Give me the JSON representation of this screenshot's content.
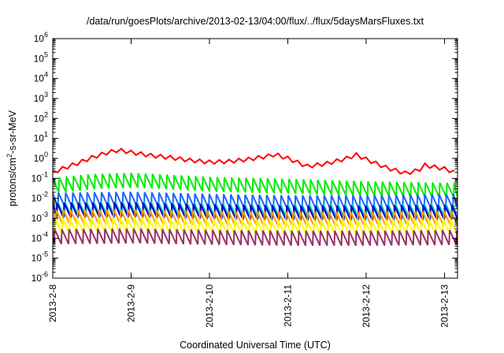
{
  "chart_data": {
    "type": "line",
    "title": "/data/run/goesPlots/archive/2013-02-13/04:00/flux/../flux/5daysMarsFluxes.txt",
    "xlabel": "Coordinated Universal Time (UTC)",
    "ylabel": {
      "prefix": "protons/cm",
      "sup": "2",
      "suffix": "-s-sr-MeV"
    },
    "yscale": "log",
    "ylim": [
      1e-06,
      1000000.0
    ],
    "y_ticks": [
      {
        "base": "10",
        "exp": "-6"
      },
      {
        "base": "10",
        "exp": "-5"
      },
      {
        "base": "10",
        "exp": "-4"
      },
      {
        "base": "10",
        "exp": "-3"
      },
      {
        "base": "10",
        "exp": "-2"
      },
      {
        "base": "10",
        "exp": "-1"
      },
      {
        "base": "10",
        "exp": "0"
      },
      {
        "base": "10",
        "exp": "1"
      },
      {
        "base": "10",
        "exp": "2"
      },
      {
        "base": "10",
        "exp": "3"
      },
      {
        "base": "10",
        "exp": "4"
      },
      {
        "base": "10",
        "exp": "5"
      },
      {
        "base": "10",
        "exp": "6"
      }
    ],
    "xlim": [
      "2013-02-08 00:00",
      "2013-02-13 04:00"
    ],
    "x_ticks": [
      "2013-2-8",
      "2013-2-9",
      "2013-2-10",
      "2013-2-11",
      "2013-2-12",
      "2013-2-13"
    ],
    "grid": false,
    "legend": "none",
    "sawtooth": {
      "period_hours": 2.2
    },
    "series": [
      {
        "color": "#ff0000",
        "stroke": 2,
        "points": [
          [
            "2013-02-08 00:00",
            0.2
          ],
          [
            "2013-02-08 04:00",
            0.35
          ],
          [
            "2013-02-08 08:00",
            0.6
          ],
          [
            "2013-02-08 12:00",
            1.1
          ],
          [
            "2013-02-08 16:00",
            1.8
          ],
          [
            "2013-02-08 20:00",
            2.6
          ],
          [
            "2013-02-09 00:00",
            2.0
          ],
          [
            "2013-02-09 06:00",
            1.4
          ],
          [
            "2013-02-09 12:00",
            1.1
          ],
          [
            "2013-02-09 18:00",
            0.8
          ],
          [
            "2013-02-10 00:00",
            0.65
          ],
          [
            "2013-02-10 06:00",
            0.7
          ],
          [
            "2013-02-10 12:00",
            0.9
          ],
          [
            "2013-02-10 18:00",
            1.3
          ],
          [
            "2013-02-10 20:00",
            1.6
          ],
          [
            "2013-02-11 00:00",
            1.0
          ],
          [
            "2013-02-11 06:00",
            0.4
          ],
          [
            "2013-02-11 12:00",
            0.55
          ],
          [
            "2013-02-11 18:00",
            1.0
          ],
          [
            "2013-02-11 21:00",
            1.5
          ],
          [
            "2013-02-12 00:00",
            0.9
          ],
          [
            "2013-02-12 06:00",
            0.35
          ],
          [
            "2013-02-12 12:00",
            0.18
          ],
          [
            "2013-02-12 16:00",
            0.25
          ],
          [
            "2013-02-12 18:00",
            0.45
          ],
          [
            "2013-02-13 00:00",
            0.3
          ],
          [
            "2013-02-13 04:00",
            0.18
          ]
        ]
      },
      {
        "color": "#00ee00",
        "stroke": 2,
        "points": [
          [
            "2013-02-08 00:00",
            0.045
          ],
          [
            "2013-02-08 12:00",
            0.07
          ],
          [
            "2013-02-09 00:00",
            0.08
          ],
          [
            "2013-02-10 00:00",
            0.05
          ],
          [
            "2013-02-11 00:00",
            0.04
          ],
          [
            "2013-02-12 00:00",
            0.03
          ],
          [
            "2013-02-13 04:00",
            0.025
          ]
        ]
      },
      {
        "color": "#1a66ff",
        "stroke": 2,
        "points": [
          [
            "2013-02-08 00:00",
            0.008
          ],
          [
            "2013-02-09 00:00",
            0.009
          ],
          [
            "2013-02-10 00:00",
            0.007
          ],
          [
            "2013-02-11 00:00",
            0.006
          ],
          [
            "2013-02-12 00:00",
            0.006
          ],
          [
            "2013-02-13 04:00",
            0.007
          ]
        ]
      },
      {
        "color": "#00c0c0",
        "stroke": 2,
        "points": [
          [
            "2013-02-08 00:00",
            0.0028
          ],
          [
            "2013-02-09 00:00",
            0.003
          ],
          [
            "2013-02-10 00:00",
            0.0025
          ],
          [
            "2013-02-11 00:00",
            0.0022
          ],
          [
            "2013-02-12 00:00",
            0.0022
          ],
          [
            "2013-02-13 04:00",
            0.0024
          ]
        ]
      },
      {
        "color": "#0000cc",
        "stroke": 2,
        "points": [
          [
            "2013-02-08 00:00",
            0.0025
          ],
          [
            "2013-02-09 00:00",
            0.0026
          ],
          [
            "2013-02-10 00:00",
            0.0021
          ],
          [
            "2013-02-11 00:00",
            0.0018
          ],
          [
            "2013-02-12 00:00",
            0.0018
          ],
          [
            "2013-02-13 04:00",
            0.002
          ]
        ]
      },
      {
        "color": "#ff9900",
        "stroke": 2,
        "points": [
          [
            "2013-02-08 00:00",
            0.0011
          ],
          [
            "2013-02-09 00:00",
            0.0012
          ],
          [
            "2013-02-10 00:00",
            0.001
          ],
          [
            "2013-02-11 00:00",
            0.0009
          ],
          [
            "2013-02-12 00:00",
            0.0009
          ],
          [
            "2013-02-13 04:00",
            0.001
          ]
        ]
      },
      {
        "color": "#ffff00",
        "stroke": 2,
        "points": [
          [
            "2013-02-08 00:00",
            0.0004
          ],
          [
            "2013-02-09 00:00",
            0.00045
          ],
          [
            "2013-02-10 00:00",
            0.00038
          ],
          [
            "2013-02-11 00:00",
            0.00035
          ],
          [
            "2013-02-12 00:00",
            0.00035
          ],
          [
            "2013-02-13 04:00",
            0.00038
          ]
        ]
      },
      {
        "color": "#993366",
        "stroke": 2,
        "points": [
          [
            "2013-02-08 00:00",
            0.00012
          ],
          [
            "2013-02-09 00:00",
            0.00013
          ],
          [
            "2013-02-10 00:00",
            0.00011
          ],
          [
            "2013-02-11 00:00",
            0.0001
          ],
          [
            "2013-02-12 00:00",
            0.0001
          ],
          [
            "2013-02-13 04:00",
            0.00011
          ]
        ]
      }
    ]
  }
}
